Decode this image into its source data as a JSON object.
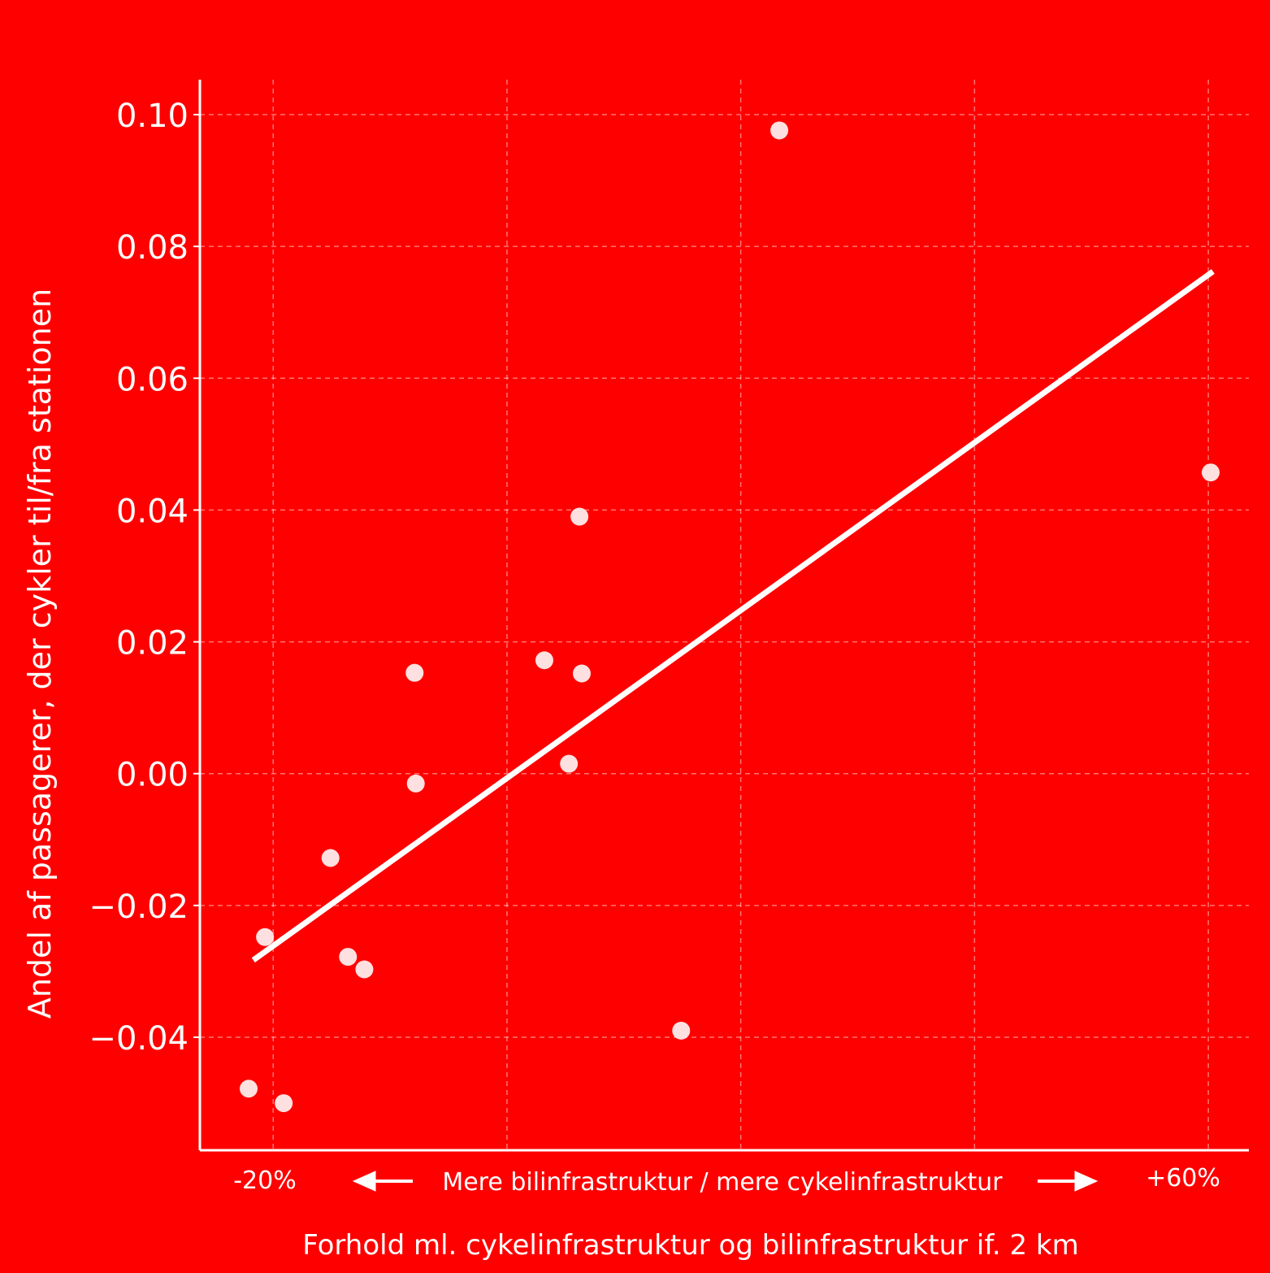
{
  "colors": {
    "background": "#ff0000",
    "foreground": "#ffffff",
    "points": "#ffe0e0"
  },
  "chart_data": {
    "type": "scatter",
    "ylabel": "Andel af passagerer, der cykler til/fra stationen",
    "xlabel": "Forhold ml. cykelinfrastruktur og bilinfrastruktur if. 2 km",
    "x_direction_label": "Mere bilinfrastruktur / mere cykelinfrastruktur",
    "x_left_label": "-20%",
    "x_right_label": "+60%",
    "xlim": [
      -22.1,
      63.4
    ],
    "ylim": [
      -0.0578,
      0.1051
    ],
    "y_ticks": [
      0.1,
      0.08,
      0.06,
      0.04,
      0.02,
      0.0,
      -0.02,
      -0.04
    ],
    "y_tick_labels": [
      "0.10",
      "0.08",
      "0.06",
      "0.04",
      "0.02",
      "0.00",
      "−0.02",
      "−0.04"
    ],
    "x_grid": [
      -20,
      0,
      20,
      40,
      60
    ],
    "grid": true,
    "points": [
      {
        "x": -22.1,
        "y": -0.0478
      },
      {
        "x": -20.7,
        "y": -0.0248
      },
      {
        "x": -19.1,
        "y": -0.05
      },
      {
        "x": -15.1,
        "y": -0.0128
      },
      {
        "x": -13.6,
        "y": -0.0278
      },
      {
        "x": -12.2,
        "y": -0.0297
      },
      {
        "x": -7.9,
        "y": 0.0153
      },
      {
        "x": -7.8,
        "y": -0.0015
      },
      {
        "x": 3.2,
        "y": 0.0172
      },
      {
        "x": 5.3,
        "y": 0.0015
      },
      {
        "x": 6.2,
        "y": 0.039
      },
      {
        "x": 6.4,
        "y": 0.0152
      },
      {
        "x": 14.9,
        "y": -0.039
      },
      {
        "x": 23.3,
        "y": 0.0976
      },
      {
        "x": 60.2,
        "y": 0.0457
      }
    ],
    "trendline": {
      "x": [
        -21.7,
        60.4
      ],
      "y": [
        -0.0283,
        0.0762
      ]
    }
  }
}
